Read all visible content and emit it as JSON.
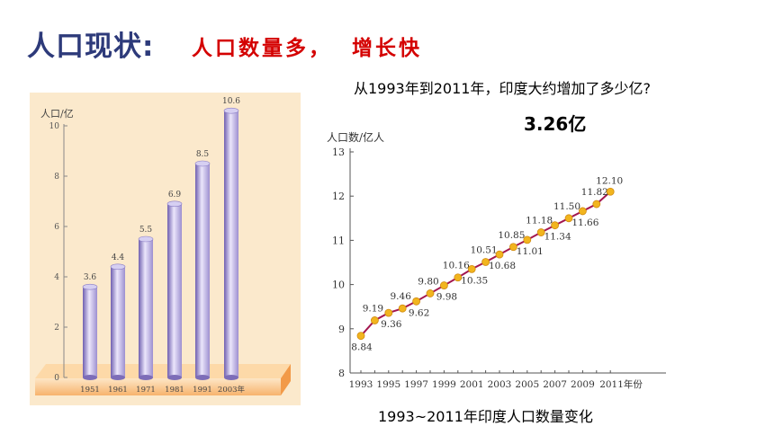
{
  "header": {
    "title": "人口现状:",
    "subtitle": "人口数量多，  增长快"
  },
  "question": "从1993年到2011年，印度大约增加了多少亿?",
  "answer": "3.26亿",
  "chart_data": [
    {
      "type": "bar",
      "ylabel": "人口/亿",
      "categories": [
        "1951",
        "1961",
        "1971",
        "1981",
        "1991",
        "2003年"
      ],
      "values": [
        3.6,
        4.4,
        5.5,
        6.9,
        8.5,
        10.6
      ],
      "value_labels": [
        "3.6",
        "4.4",
        "5.5",
        "6.9",
        "8.5",
        "10.6"
      ],
      "ylim": [
        0,
        10
      ],
      "yticks": [
        0,
        2,
        4,
        6,
        8,
        10
      ],
      "colors": {
        "bar": "#9d8fd0",
        "base": "#f7b36d",
        "background": "#fbe9cc"
      }
    },
    {
      "type": "line",
      "ylabel": "人口数/亿人",
      "caption": "1993~2011年印度人口数量变化",
      "x": [
        1993,
        1994,
        1995,
        1996,
        1997,
        1998,
        1999,
        2000,
        2001,
        2002,
        2003,
        2004,
        2005,
        2006,
        2007,
        2008,
        2009,
        2010,
        2011
      ],
      "values": [
        8.84,
        9.19,
        9.36,
        9.46,
        9.62,
        9.8,
        9.98,
        10.16,
        10.35,
        10.51,
        10.68,
        10.85,
        11.01,
        11.18,
        11.34,
        11.5,
        11.66,
        11.82,
        12.1
      ],
      "point_labels": [
        "8.84",
        "9.19",
        "9.36",
        "9.46",
        "9.62",
        "9.80",
        "9.98",
        "10.16",
        "10.35",
        "10.51",
        "10.68",
        "10.85",
        "11.01",
        "11.18",
        "11.34",
        "11.50",
        "11.66",
        "11.82",
        "12.10"
      ],
      "xtick_labels": [
        "1993",
        "1995",
        "1997",
        "1999",
        "2001",
        "2003",
        "2005",
        "2007",
        "2009",
        "2011年份"
      ],
      "xticks": [
        1993,
        1995,
        1997,
        1999,
        2001,
        2003,
        2005,
        2007,
        2009,
        2011
      ],
      "ylim": [
        8,
        13
      ],
      "yticks": [
        8,
        9,
        10,
        11,
        12,
        13
      ],
      "grid": false,
      "colors": {
        "line": "#a3174f",
        "marker": "#f2b51e"
      }
    }
  ]
}
